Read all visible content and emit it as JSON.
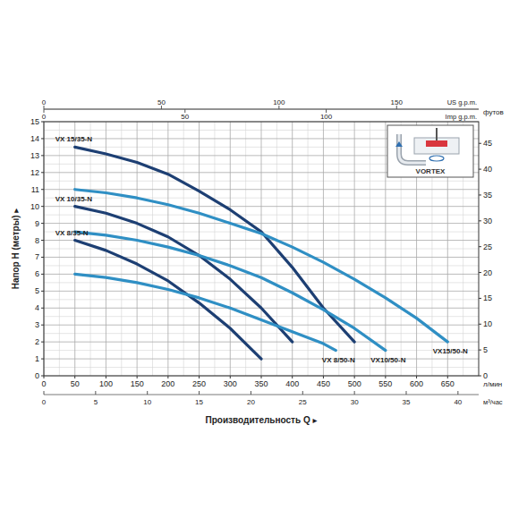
{
  "chart_data": {
    "type": "line",
    "x_label": "Производительность Q ▸",
    "y_label": "Напор H (метры) ▸",
    "x_unit": "л/мин",
    "xlim": [
      0,
      700
    ],
    "xticks": [
      0,
      50,
      100,
      150,
      200,
      250,
      300,
      350,
      400,
      450,
      500,
      550,
      600,
      650
    ],
    "ylim": [
      0,
      15
    ],
    "yticks": [
      0,
      1,
      2,
      3,
      4,
      5,
      6,
      7,
      8,
      9,
      10,
      11,
      12,
      13,
      14,
      15
    ],
    "y2_label": "футов",
    "y2lim": [
      0,
      49.2
    ],
    "y2ticks": [
      0,
      5,
      10,
      15,
      20,
      25,
      30,
      35,
      40,
      45
    ],
    "secondary_x_axes": [
      {
        "label": "м³/час",
        "position": "bottom",
        "lim": [
          0,
          42
        ],
        "ticks": [
          0,
          5,
          10,
          15,
          20,
          25,
          30,
          35,
          40
        ]
      },
      {
        "label": "US g.p.m.",
        "position": "top",
        "lim": [
          0,
          184.9
        ],
        "ticks": [
          0,
          50,
          100,
          150
        ]
      },
      {
        "label": "Imp g.p.m.",
        "position": "top",
        "lim": [
          0,
          154
        ],
        "ticks": [
          0,
          50,
          100
        ]
      }
    ],
    "annotations": [
      "VORTEX"
    ],
    "grid": true,
    "series": [
      {
        "name": "VX 15/35-N",
        "color": "#1d3f73",
        "x": [
          50,
          100,
          150,
          200,
          250,
          300,
          350,
          400,
          450,
          500
        ],
        "values": [
          13.5,
          13.1,
          12.6,
          11.9,
          10.9,
          9.8,
          8.5,
          6.4,
          4.0,
          2.0
        ]
      },
      {
        "name": "VX 10/35-N",
        "color": "#1d3f73",
        "x": [
          50,
          100,
          150,
          200,
          250,
          300,
          350,
          400
        ],
        "values": [
          10.0,
          9.6,
          9.0,
          8.2,
          7.1,
          5.7,
          4.0,
          2.0
        ]
      },
      {
        "name": "VX 8/35-N",
        "color": "#1d3f73",
        "x": [
          50,
          100,
          150,
          200,
          250,
          300,
          350
        ],
        "values": [
          8.0,
          7.4,
          6.6,
          5.6,
          4.3,
          2.8,
          1.0
        ]
      },
      {
        "name": "VX 8/50-N",
        "color": "#2f8fc4",
        "x": [
          50,
          100,
          150,
          200,
          250,
          300,
          350,
          400,
          450,
          470
        ],
        "values": [
          6.0,
          5.8,
          5.5,
          5.1,
          4.6,
          4.0,
          3.3,
          2.6,
          1.9,
          1.5
        ]
      },
      {
        "name": "VX10/50-N",
        "color": "#2f8fc4",
        "x": [
          50,
          100,
          150,
          200,
          250,
          300,
          350,
          400,
          450,
          500,
          550
        ],
        "values": [
          8.5,
          8.3,
          8.0,
          7.6,
          7.1,
          6.5,
          5.8,
          4.9,
          3.9,
          2.8,
          1.5
        ]
      },
      {
        "name": "VX15/50-N",
        "color": "#2f8fc4",
        "x": [
          50,
          100,
          150,
          200,
          250,
          300,
          350,
          400,
          450,
          500,
          550,
          600,
          650
        ],
        "values": [
          11.0,
          10.8,
          10.5,
          10.1,
          9.6,
          9.0,
          8.4,
          7.6,
          6.7,
          5.7,
          4.6,
          3.4,
          2.0
        ]
      }
    ]
  }
}
